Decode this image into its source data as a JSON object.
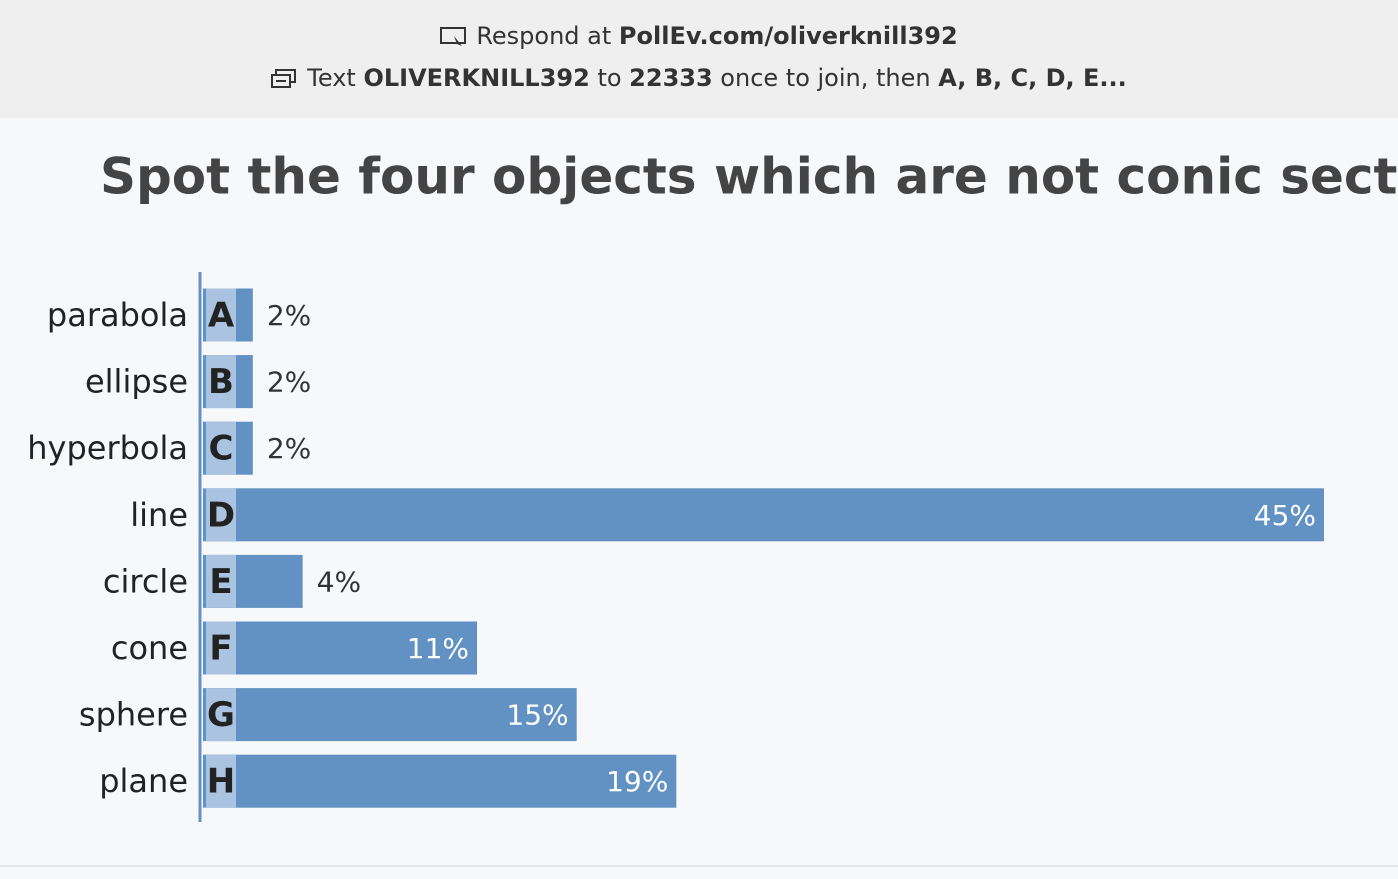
{
  "header": {
    "line1": {
      "prefix": "Respond at ",
      "url": "PollEv.com/oliverknill392"
    },
    "line2": {
      "prefix": "Text ",
      "code": "OLIVERKNILL392",
      "middle": " to ",
      "number": "22333",
      "suffix": " once to join, then ",
      "options": "A, B, C, D, E..."
    }
  },
  "chart_data": {
    "type": "bar",
    "orientation": "horizontal",
    "title": "Spot the four objects which are not conic sections!",
    "categories": [
      "parabola",
      "ellipse",
      "hyperbola",
      "line",
      "circle",
      "cone",
      "sphere",
      "plane"
    ],
    "letters": [
      "A",
      "B",
      "C",
      "D",
      "E",
      "F",
      "G",
      "H"
    ],
    "values": [
      2,
      2,
      2,
      45,
      4,
      11,
      15,
      19
    ],
    "value_labels": [
      "2%",
      "2%",
      "2%",
      "45%",
      "4%",
      "11%",
      "15%",
      "19%"
    ],
    "color": "#6291c4",
    "letter_color": "#a9c3e0"
  }
}
